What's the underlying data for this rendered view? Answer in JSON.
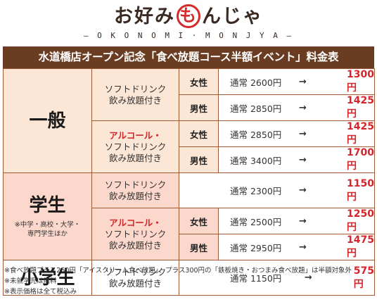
{
  "logo": {
    "before": "お好み",
    "circle_char": "も",
    "after": "んじゃ",
    "subtitle": "– O K O N O M I · M O N J Y A –"
  },
  "title": "水道橋店オープン記念「食べ放題コース半額イベント」料金表",
  "arrow": "→",
  "categories": {
    "ippan": {
      "label": "一般"
    },
    "gakusei": {
      "label": "学生",
      "note_line1": "※中学・高校・大学・",
      "note_line2": "専門学生ほか"
    },
    "shougakusei": {
      "label": "小学生"
    }
  },
  "plans": {
    "soft_line1": "ソフトドリンク",
    "soft_line2": "飲み放題付き",
    "alc_line1": "アルコール・",
    "alc_line2": "ソフトドリンク",
    "alc_line3": "飲み放題付き"
  },
  "gender": {
    "female": "女性",
    "male": "男性"
  },
  "prices": {
    "ippan_soft_f": {
      "regular": "通常 2600円",
      "sale": "1300円"
    },
    "ippan_soft_m": {
      "regular": "通常 2850円",
      "sale": "1425円"
    },
    "ippan_alc_f": {
      "regular": "通常 2850円",
      "sale": "1425円"
    },
    "ippan_alc_m": {
      "regular": "通常 3400円",
      "sale": "1700円"
    },
    "gakusei_soft": {
      "regular": "通常 2300円",
      "sale": "1150円"
    },
    "gakusei_alc_f": {
      "regular": "通常 2500円",
      "sale": "1250円"
    },
    "gakusei_alc_m": {
      "regular": "通常 2950円",
      "sale": "1475円"
    },
    "shou_soft": {
      "regular": "通常 1150円",
      "sale": "575円"
    }
  },
  "notes": [
    "※食べ放題プラス250円「アイスクリーム食べ放題」、プラス300円の「鉄板焼き・おつまみ食べ放題」は半額対象外",
    "※未就学児は無料",
    "※表示価格は全て税込み"
  ],
  "colors": {
    "title_bg": "#6a3c21",
    "border": "#a05a34",
    "sale_red": "#d4252a",
    "ippan_bg": "#fce6d6",
    "gakusei_bg": "#fcd8cc"
  }
}
